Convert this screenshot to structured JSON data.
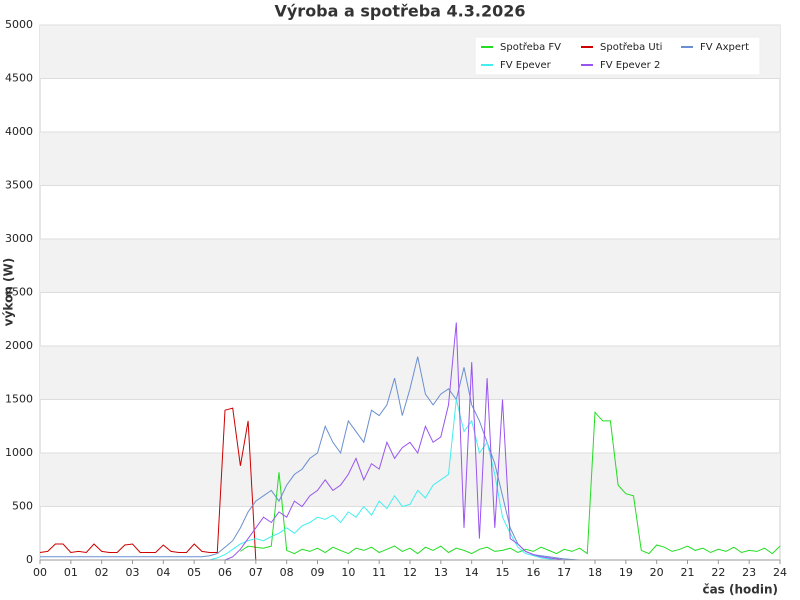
{
  "chart_data": {
    "type": "line",
    "title": "Výroba a spotřeba 4.3.2026",
    "xlabel": "čas (hodin)",
    "ylabel": "výkon (W)",
    "grid": true,
    "legend": "upper right",
    "xlim": [
      0,
      24
    ],
    "ylim": [
      0,
      5000
    ],
    "xticks": [
      {
        "value": 0,
        "label": "00"
      },
      {
        "value": 1,
        "label": "01"
      },
      {
        "value": 2,
        "label": "02"
      },
      {
        "value": 3,
        "label": "03"
      },
      {
        "value": 4,
        "label": "04"
      },
      {
        "value": 5,
        "label": "05"
      },
      {
        "value": 6,
        "label": "06"
      },
      {
        "value": 7,
        "label": "07"
      },
      {
        "value": 8,
        "label": "08"
      },
      {
        "value": 9,
        "label": "09"
      },
      10,
      11,
      12,
      13,
      14,
      15,
      16,
      17,
      18,
      19,
      20,
      21,
      22,
      23,
      24
    ],
    "yticks": [
      0,
      500,
      1000,
      1500,
      2000,
      2500,
      3000,
      3500,
      4000,
      4500,
      5000
    ],
    "x": [
      0,
      0.25,
      0.5,
      0.75,
      1,
      1.25,
      1.5,
      1.75,
      2,
      2.25,
      2.5,
      2.75,
      3,
      3.25,
      3.5,
      3.75,
      4,
      4.25,
      4.5,
      4.75,
      5,
      5.25,
      5.5,
      5.75,
      6,
      6.25,
      6.5,
      6.75,
      7,
      7.25,
      7.5,
      7.75,
      8,
      8.25,
      8.5,
      8.75,
      9,
      9.25,
      9.5,
      9.75,
      10,
      10.25,
      10.5,
      10.75,
      11,
      11.25,
      11.5,
      11.75,
      12,
      12.25,
      12.5,
      12.75,
      13,
      13.25,
      13.5,
      13.75,
      14,
      14.25,
      14.5,
      14.75,
      15,
      15.25,
      15.5,
      15.75,
      16,
      16.25,
      16.5,
      16.75,
      17,
      17.25,
      17.5,
      17.75,
      18,
      18.25,
      18.5,
      18.75,
      19,
      19.25,
      19.5,
      19.75,
      20,
      20.25,
      20.5,
      20.75,
      21,
      21.25,
      21.5,
      21.75,
      22,
      22.25,
      22.5,
      22.75,
      23,
      23.25,
      23.5,
      23.75,
      24
    ],
    "series": [
      {
        "name": "Spotřeba FV",
        "color": "#22dd22",
        "values": [
          null,
          null,
          null,
          null,
          null,
          null,
          null,
          null,
          null,
          null,
          null,
          null,
          null,
          null,
          null,
          null,
          null,
          null,
          null,
          null,
          null,
          null,
          null,
          null,
          null,
          null,
          80,
          130,
          120,
          110,
          130,
          820,
          90,
          60,
          100,
          80,
          110,
          70,
          120,
          90,
          60,
          110,
          90,
          120,
          70,
          100,
          130,
          80,
          110,
          60,
          120,
          90,
          130,
          70,
          110,
          90,
          60,
          100,
          120,
          80,
          90,
          110,
          70,
          100,
          80,
          120,
          90,
          60,
          100,
          80,
          110,
          60,
          1380,
          1300,
          1300,
          700,
          620,
          600,
          90,
          60,
          140,
          120,
          80,
          100,
          130,
          90,
          110,
          70,
          100,
          80,
          120,
          70,
          90,
          80,
          110,
          60,
          130
        ]
      },
      {
        "name": "Spotřeba Uti",
        "color": "#cc0000",
        "values": [
          70,
          80,
          150,
          150,
          70,
          80,
          70,
          150,
          80,
          70,
          70,
          140,
          150,
          70,
          70,
          70,
          140,
          80,
          70,
          70,
          150,
          80,
          70,
          70,
          1400,
          1420,
          880,
          1300,
          0,
          null,
          null,
          null,
          null,
          null,
          null,
          null,
          null,
          null,
          null,
          null,
          null,
          null,
          null,
          null,
          null,
          null,
          null,
          null,
          null,
          null,
          null,
          null,
          null,
          null,
          null,
          null,
          null,
          null,
          null,
          null,
          null,
          null,
          null,
          null,
          null,
          null,
          null,
          null,
          null,
          null,
          null,
          null,
          null,
          null,
          null,
          null,
          null,
          null,
          null,
          null,
          null,
          null,
          null,
          null,
          null,
          null,
          null,
          null,
          null,
          null,
          null,
          null,
          null,
          null,
          null,
          null,
          null
        ]
      },
      {
        "name": "FV Axpert",
        "color": "#6a8fd0",
        "values": [
          30,
          30,
          30,
          30,
          30,
          30,
          30,
          30,
          30,
          30,
          30,
          30,
          30,
          30,
          30,
          30,
          30,
          30,
          30,
          30,
          30,
          30,
          40,
          60,
          120,
          180,
          300,
          450,
          550,
          600,
          650,
          550,
          700,
          800,
          850,
          950,
          1000,
          1250,
          1100,
          1000,
          1300,
          1200,
          1100,
          1400,
          1350,
          1450,
          1700,
          1350,
          1600,
          1900,
          1550,
          1450,
          1550,
          1600,
          1500,
          1800,
          1450,
          1300,
          1100,
          900,
          600,
          300,
          150,
          80,
          50,
          40,
          30,
          20,
          10,
          5,
          0,
          null,
          null,
          null,
          null,
          null,
          null,
          null,
          null,
          null,
          null,
          null,
          null,
          null,
          null,
          null,
          null,
          null,
          null,
          null,
          null,
          null,
          null,
          null,
          null,
          null,
          null
        ]
      },
      {
        "name": "FV Epever",
        "color": "#44eeee",
        "values": [
          null,
          null,
          null,
          null,
          null,
          null,
          null,
          null,
          null,
          null,
          null,
          null,
          null,
          null,
          null,
          null,
          null,
          null,
          null,
          null,
          null,
          null,
          0,
          20,
          50,
          100,
          150,
          180,
          200,
          180,
          220,
          250,
          300,
          250,
          320,
          350,
          400,
          380,
          420,
          350,
          450,
          400,
          500,
          420,
          550,
          480,
          600,
          500,
          520,
          650,
          580,
          700,
          750,
          800,
          1500,
          1200,
          1300,
          1000,
          1100,
          800,
          400,
          250,
          120,
          60,
          40,
          20,
          10,
          0,
          null,
          null,
          null,
          null,
          null,
          null,
          null,
          null,
          null,
          null,
          null,
          null,
          null,
          null,
          null,
          null,
          null,
          null,
          null,
          null,
          null,
          null,
          null,
          null,
          null,
          null,
          null,
          null,
          null
        ]
      },
      {
        "name": "FV Epever 2",
        "color": "#9955ee",
        "values": [
          null,
          null,
          null,
          null,
          null,
          null,
          null,
          null,
          null,
          null,
          null,
          null,
          null,
          null,
          null,
          null,
          null,
          null,
          null,
          null,
          null,
          null,
          null,
          null,
          0,
          30,
          100,
          200,
          300,
          400,
          350,
          450,
          400,
          550,
          500,
          600,
          650,
          750,
          650,
          700,
          800,
          950,
          750,
          900,
          850,
          1100,
          950,
          1050,
          1100,
          1000,
          1250,
          1100,
          1150,
          1450,
          2220,
          300,
          1850,
          200,
          1700,
          300,
          1500,
          200,
          150,
          80,
          50,
          30,
          20,
          10,
          0,
          null,
          null,
          null,
          null,
          null,
          null,
          null,
          null,
          null,
          null,
          null,
          null,
          null,
          null,
          null,
          null,
          null,
          null,
          null,
          null,
          null,
          null,
          null,
          null,
          null,
          null,
          null,
          null
        ]
      }
    ]
  }
}
